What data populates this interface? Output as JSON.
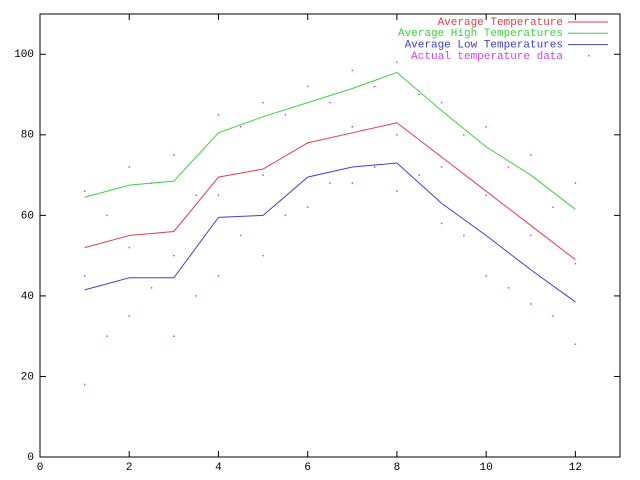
{
  "chart_data": {
    "type": "line",
    "x": [
      1,
      2,
      3,
      4,
      5,
      6,
      7,
      8,
      9,
      10,
      11,
      12
    ],
    "xlim": [
      0,
      13
    ],
    "ylim": [
      0,
      110
    ],
    "xticks": [
      0,
      2,
      4,
      6,
      8,
      10,
      12
    ],
    "yticks": [
      0,
      20,
      40,
      60,
      80,
      100
    ],
    "legend": "top-right",
    "series": [
      {
        "name": "Average Temperature",
        "color": "#e0404a",
        "values": [
          52,
          55,
          56,
          69.5,
          71.5,
          78,
          80.5,
          83,
          74.5,
          66,
          57.5,
          49
        ]
      },
      {
        "name": "Average High Temperatures",
        "color": "#40d040",
        "values": [
          64.5,
          67.5,
          68.5,
          80.5,
          84.5,
          88,
          91.5,
          95.5,
          86,
          77,
          70,
          61.5
        ]
      },
      {
        "name": "Average Low Temperatures",
        "color": "#4040d0",
        "values": [
          41.5,
          44.5,
          44.5,
          59.5,
          60,
          69.5,
          72,
          73,
          63,
          55,
          46.5,
          38.5
        ]
      },
      {
        "name": "Actual temperature data",
        "color": "#cc44ee",
        "type": "scatter",
        "x": [
          1,
          1,
          1,
          1.5,
          1.5,
          2,
          2,
          2,
          2.5,
          2.5,
          3,
          3,
          3,
          3.5,
          3.5,
          4,
          4,
          4,
          4.5,
          4.5,
          5,
          5,
          5,
          5.5,
          5.5,
          6,
          6,
          6,
          6.5,
          6.5,
          7,
          7,
          7,
          7.5,
          7.5,
          8,
          8,
          8,
          8.5,
          8.5,
          9,
          9,
          9,
          9.5,
          9.5,
          10,
          10,
          10,
          10.5,
          10.5,
          11,
          11,
          11,
          11.5,
          11.5,
          12,
          12,
          12
        ],
        "values": [
          18,
          45,
          66,
          30,
          60,
          35,
          52,
          72,
          42,
          68,
          30,
          50,
          75,
          40,
          65,
          45,
          65,
          85,
          55,
          82,
          50,
          70,
          88,
          60,
          85,
          62,
          78,
          92,
          68,
          88,
          68,
          82,
          96,
          72,
          92,
          66,
          80,
          98,
          70,
          90,
          58,
          72,
          88,
          55,
          80,
          45,
          65,
          82,
          42,
          72,
          38,
          55,
          75,
          35,
          62,
          28,
          48,
          68
        ]
      }
    ]
  }
}
